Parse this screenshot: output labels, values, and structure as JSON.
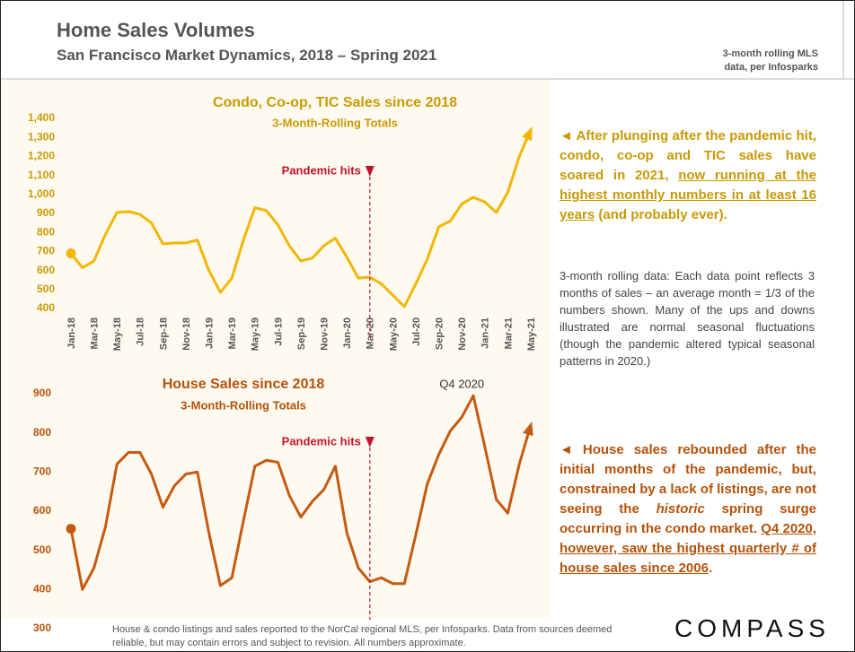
{
  "header": {
    "title": "Home Sales Volumes",
    "subtitle": "San Francisco Market Dynamics, 2018 – Spring 2021",
    "source_note": "3-month rolling MLS data, per Infosparks"
  },
  "chart_data": [
    {
      "type": "line",
      "title": "Condo, Co-op, TIC Sales since 2018",
      "subtitle": "3-Month-Rolling Totals",
      "color": "#f2b705",
      "title_color": "#c99a06",
      "categories": [
        "Jan-18",
        null,
        "Mar-18",
        null,
        "May-18",
        null,
        "Jul-18",
        null,
        "Sep-18",
        null,
        "Nov-18",
        null,
        "Jan-19",
        null,
        "Mar-19",
        null,
        "May-19",
        null,
        "Jul-19",
        null,
        "Sep-19",
        null,
        "Nov-19",
        null,
        "Jan-20",
        null,
        "Mar-20",
        null,
        "May-20",
        null,
        "Jul-20",
        null,
        "Sep-20",
        null,
        "Nov-20",
        null,
        "Jan-21",
        null,
        "Mar-21",
        null,
        "May-21"
      ],
      "values": [
        690,
        615,
        650,
        790,
        905,
        910,
        895,
        850,
        740,
        745,
        745,
        760,
        600,
        485,
        560,
        760,
        930,
        915,
        840,
        730,
        650,
        665,
        730,
        770,
        670,
        560,
        565,
        530,
        470,
        410,
        530,
        660,
        830,
        860,
        950,
        985,
        960,
        905,
        1010,
        1200,
        1340
      ],
      "ylim": [
        400,
        1400
      ],
      "yticks": [
        400,
        500,
        600,
        700,
        800,
        900,
        {
          "value": 1000,
          "label": "1,000"
        },
        {
          "value": 1100,
          "label": "1,100"
        },
        {
          "value": 1200,
          "label": "1,200"
        },
        {
          "value": 1300,
          "label": "1,300"
        },
        {
          "value": 1400,
          "label": "1,400"
        }
      ],
      "annotations": [
        {
          "text": "Pandemic hits",
          "x": "Mar-20",
          "color": "#c0142c",
          "marker": "triangle"
        }
      ]
    },
    {
      "type": "line",
      "title": "House Sales since 2018",
      "subtitle": "3-Month-Rolling Totals",
      "color": "#c55a11",
      "title_color": "#b5520b",
      "values": [
        555,
        400,
        455,
        560,
        720,
        750,
        750,
        695,
        610,
        665,
        695,
        700,
        545,
        410,
        430,
        575,
        715,
        730,
        725,
        640,
        585,
        625,
        655,
        715,
        545,
        455,
        420,
        430,
        415,
        415,
        540,
        670,
        745,
        805,
        840,
        895,
        765,
        630,
        595,
        720,
        820
      ],
      "ylim": [
        300,
        900
      ],
      "yticks": [
        300,
        400,
        500,
        600,
        700,
        800,
        900
      ],
      "annotations": [
        {
          "text": "Pandemic hits",
          "x": "Mar-20",
          "color": "#c0142c",
          "marker": "triangle"
        },
        {
          "text": "Q4 2020",
          "x": "Nov-20",
          "color": "#333333"
        }
      ]
    }
  ],
  "commentary": [
    {
      "color": "#c99a06",
      "bold": true,
      "segments": [
        {
          "text": "◄ After plunging after the pandemic hit, condo, co-op and TIC sales have soared in 2021, "
        },
        {
          "text": "now running at the highest monthly numbers in at least 16 years",
          "underline": true
        },
        {
          "text": " (and probably ever)."
        }
      ]
    },
    {
      "color": "#444444",
      "bold": false,
      "segments": [
        {
          "text": "3-month rolling data: Each data point reflects 3 months of sales – an average month = 1/3 of the numbers shown. Many of the ups and downs illustrated are normal seasonal fluctuations (though the pandemic altered typical seasonal patterns in 2020.)"
        }
      ]
    },
    {
      "color": "#b5520b",
      "bold": true,
      "segments": [
        {
          "text": "◄ House sales rebounded after the initial months of the pandemic, but, constrained by a lack of listings, are not seeing the "
        },
        {
          "text": "historic",
          "italic": true
        },
        {
          "text": " spring surge occurring in the condo market. "
        },
        {
          "text": "Q4 2020, however, saw the highest quarterly # of house sales since 2006",
          "underline": true
        },
        {
          "text": "."
        }
      ]
    }
  ],
  "footer": {
    "note": "House & condo listings and sales reported to the NorCal regional MLS, per Infosparks. Data from sources deemed reliable, but may contain errors and subject to revision. All numbers approximate.",
    "logo": "COMPASS"
  }
}
